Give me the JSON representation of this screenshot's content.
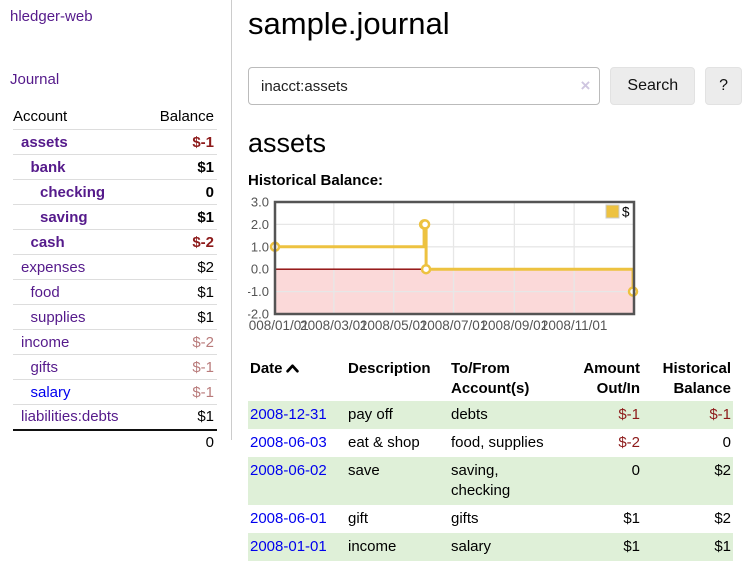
{
  "colors": {
    "link_purple": "#551a8b",
    "link_blue": "#0000ee",
    "negative_strong": "#8d1a1a",
    "negative_muted": "#b97b7b",
    "row_green": "#dff0d8",
    "chart_line": "#edc240",
    "chart_negative_region": "#fbd9d9",
    "chart_zero_line": "#8b0000",
    "chart_grid": "#e7e7e7",
    "chart_border": "#545454"
  },
  "sidebar": {
    "app_title": "hledger-web",
    "journal_link": "Journal",
    "accounts_table": {
      "headers": {
        "account": "Account",
        "balance": "Balance"
      },
      "rows": [
        {
          "account": "assets",
          "balance": "$-1",
          "depth": 0,
          "bold": true,
          "neg": "strong",
          "link": "purple"
        },
        {
          "account": "bank",
          "balance": "$1",
          "depth": 1,
          "bold": true,
          "neg": "",
          "link": "purple"
        },
        {
          "account": "checking",
          "balance": "0",
          "depth": 2,
          "bold": true,
          "neg": "",
          "link": "purple"
        },
        {
          "account": "saving",
          "balance": "$1",
          "depth": 2,
          "bold": true,
          "neg": "",
          "link": "purple"
        },
        {
          "account": "cash",
          "balance": "$-2",
          "depth": 1,
          "bold": true,
          "neg": "strong",
          "link": "purple"
        },
        {
          "account": "expenses",
          "balance": "$2",
          "depth": 0,
          "bold": false,
          "neg": "",
          "link": "purple"
        },
        {
          "account": "food",
          "balance": "$1",
          "depth": 1,
          "bold": false,
          "neg": "",
          "link": "purple"
        },
        {
          "account": "supplies",
          "balance": "$1",
          "depth": 1,
          "bold": false,
          "neg": "",
          "link": "purple"
        },
        {
          "account": "income",
          "balance": "$-2",
          "depth": 0,
          "bold": false,
          "neg": "muted",
          "link": "purple"
        },
        {
          "account": "gifts",
          "balance": "$-1",
          "depth": 1,
          "bold": false,
          "neg": "muted",
          "link": "purple"
        },
        {
          "account": "salary",
          "balance": "$-1",
          "depth": 1,
          "bold": false,
          "neg": "muted",
          "link": "blue"
        },
        {
          "account": "liabilities:debts",
          "balance": "$1",
          "depth": 0,
          "bold": false,
          "neg": "",
          "link": "purple"
        }
      ],
      "total": "0"
    }
  },
  "header": {
    "title": "sample.journal"
  },
  "search": {
    "value": "inacct:assets",
    "clear_symbol": "×",
    "search_button": "Search",
    "help_button": "?"
  },
  "account_page": {
    "title": "assets",
    "chart_label": "Historical Balance:"
  },
  "chart_data": {
    "type": "line",
    "step": true,
    "title": "Historical Balance",
    "legend": [
      {
        "label": "$",
        "color": "#edc240"
      }
    ],
    "legend_position": "top-right",
    "grid": true,
    "x_range": [
      "2008-01-01",
      "2009-01-01"
    ],
    "ylim": [
      -2,
      3
    ],
    "y_ticks": [
      {
        "value": 3,
        "label": "3.0"
      },
      {
        "value": 2,
        "label": "2.0"
      },
      {
        "value": 1,
        "label": "1.0"
      },
      {
        "value": 0,
        "label": "0.0"
      },
      {
        "value": -1,
        "label": "-1.0"
      },
      {
        "value": -2,
        "label": "-2.0"
      }
    ],
    "x_ticks": [
      {
        "date": "2008-01-01",
        "label": "2008/01/01"
      },
      {
        "date": "2008-03-01",
        "label": "2008/03/01"
      },
      {
        "date": "2008-05-01",
        "label": "2008/05/01"
      },
      {
        "date": "2008-07-01",
        "label": "2008/07/01"
      },
      {
        "date": "2008-09-01",
        "label": "2008/09/01"
      },
      {
        "date": "2008-11-01",
        "label": "2008/11/01"
      }
    ],
    "series": [
      {
        "name": "$",
        "points": [
          {
            "date": "2008-01-01",
            "value": 1
          },
          {
            "date": "2008-06-01",
            "value": 2
          },
          {
            "date": "2008-06-02",
            "value": 2
          },
          {
            "date": "2008-06-03",
            "value": 0
          },
          {
            "date": "2008-12-31",
            "value": -1
          }
        ]
      }
    ]
  },
  "register": {
    "headers": {
      "date": "Date",
      "description": "Description",
      "accounts": "To/From Account(s)",
      "amount": "Amount Out/In",
      "balance": "Historical Balance"
    },
    "sort": {
      "column": "date",
      "direction": "ascending"
    },
    "rows": [
      {
        "date": "2008-12-31",
        "description": "pay off",
        "accounts": "debts",
        "amount": "$-1",
        "balance": "$-1",
        "amount_neg": true,
        "balance_neg": true,
        "green": true
      },
      {
        "date": "2008-06-03",
        "description": "eat & shop",
        "accounts": "food, supplies",
        "amount": "$-2",
        "balance": "0",
        "amount_neg": true,
        "balance_neg": false,
        "green": false
      },
      {
        "date": "2008-06-02",
        "description": "save",
        "accounts": "saving, checking",
        "amount": "0",
        "balance": "$2",
        "amount_neg": false,
        "balance_neg": false,
        "green": true
      },
      {
        "date": "2008-06-01",
        "description": "gift",
        "accounts": "gifts",
        "amount": "$1",
        "balance": "$2",
        "amount_neg": false,
        "balance_neg": false,
        "green": false
      },
      {
        "date": "2008-01-01",
        "description": "income",
        "accounts": "salary",
        "amount": "$1",
        "balance": "$1",
        "amount_neg": false,
        "balance_neg": false,
        "green": true
      }
    ]
  }
}
